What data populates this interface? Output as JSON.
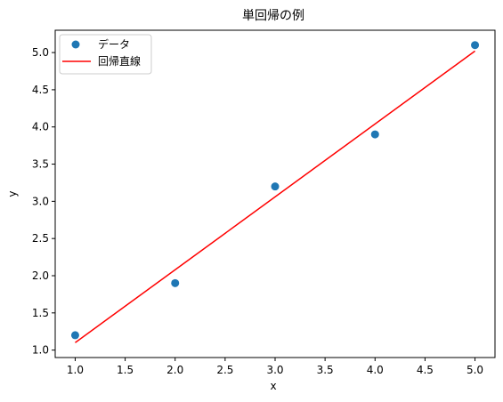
{
  "chart_data": {
    "type": "scatter",
    "title": "単回帰の例",
    "xlabel": "x",
    "ylabel": "y",
    "xlim": [
      0.8,
      5.2
    ],
    "ylim": [
      0.9,
      5.3
    ],
    "xticks": [
      "1.0",
      "1.5",
      "2.0",
      "2.5",
      "3.0",
      "3.5",
      "4.0",
      "4.5",
      "5.0"
    ],
    "yticks": [
      "1.0",
      "1.5",
      "2.0",
      "2.5",
      "3.0",
      "3.5",
      "4.0",
      "4.5",
      "5.0"
    ],
    "grid": false,
    "legend": "top-left",
    "series": [
      {
        "name": "データ",
        "kind": "scatter",
        "color": "#1f77b4",
        "x": [
          1,
          2,
          3,
          4,
          5
        ],
        "y": [
          1.2,
          1.9,
          3.2,
          3.9,
          5.1
        ]
      },
      {
        "name": "回帰直線",
        "kind": "line",
        "color": "#ff0000",
        "x": [
          1,
          5
        ],
        "y": [
          1.1,
          5.02
        ]
      }
    ]
  }
}
